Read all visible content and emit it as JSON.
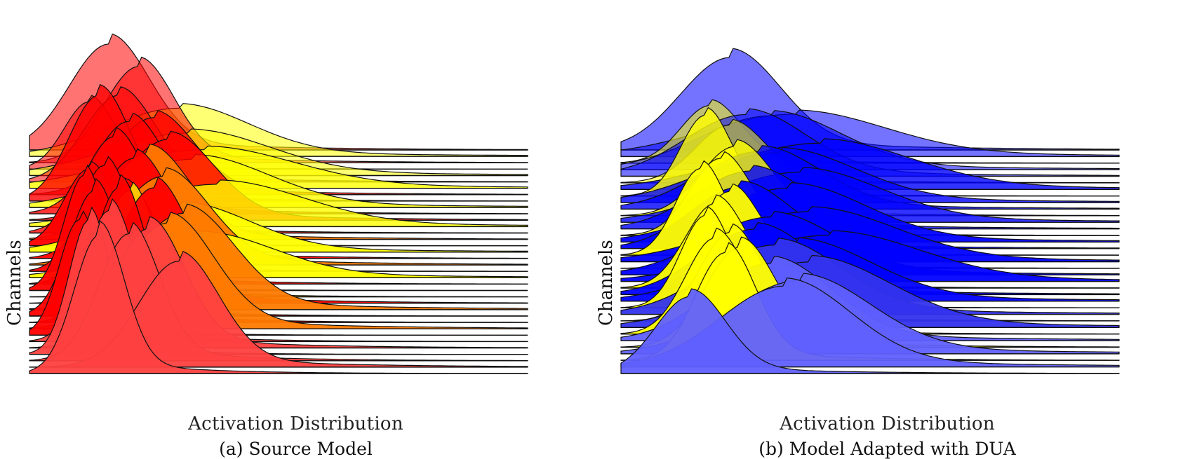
{
  "chart_data": [
    {
      "type": "ridgeline",
      "panel": "a",
      "caption": "(a) Source Model",
      "xlabel": "Activation Distribution",
      "ylabel": "Channels",
      "colors": [
        "#ff0000",
        "#ffff00",
        "#ff7a00",
        "#ff4040",
        "#ffd000"
      ],
      "series": [
        {
          "color": "#ff0000",
          "mean": 0.16,
          "std": 0.08,
          "height": 0.55
        },
        {
          "color": "#ffff00",
          "mean": 0.3,
          "std": 0.14,
          "height": 0.25
        },
        {
          "color": "#ff0000",
          "mean": 0.22,
          "std": 0.07,
          "height": 0.5
        },
        {
          "color": "#ff0000",
          "mean": 0.12,
          "std": 0.05,
          "height": 0.35
        },
        {
          "color": "#ffff00",
          "mean": 0.32,
          "std": 0.16,
          "height": 0.22
        },
        {
          "color": "#ff0000",
          "mean": 0.18,
          "std": 0.07,
          "height": 0.45
        },
        {
          "color": "#ffff00",
          "mean": 0.35,
          "std": 0.18,
          "height": 0.2
        },
        {
          "color": "#ff0000",
          "mean": 0.25,
          "std": 0.08,
          "height": 0.4
        },
        {
          "color": "#ff0000",
          "mean": 0.14,
          "std": 0.06,
          "height": 0.55
        },
        {
          "color": "#ffff00",
          "mean": 0.33,
          "std": 0.15,
          "height": 0.25
        },
        {
          "color": "#ff0000",
          "mean": 0.2,
          "std": 0.07,
          "height": 0.48
        },
        {
          "color": "#ff0000",
          "mean": 0.28,
          "std": 0.09,
          "height": 0.42
        },
        {
          "color": "#ffff00",
          "mean": 0.38,
          "std": 0.17,
          "height": 0.22
        },
        {
          "color": "#ff0000",
          "mean": 0.17,
          "std": 0.06,
          "height": 0.5
        },
        {
          "color": "#ff7a00",
          "mean": 0.24,
          "std": 0.08,
          "height": 0.45
        },
        {
          "color": "#ff0000",
          "mean": 0.12,
          "std": 0.05,
          "height": 0.4
        },
        {
          "color": "#ffff00",
          "mean": 0.3,
          "std": 0.14,
          "height": 0.24
        },
        {
          "color": "#ff0000",
          "mean": 0.21,
          "std": 0.07,
          "height": 0.52
        },
        {
          "color": "#ff7a00",
          "mean": 0.27,
          "std": 0.09,
          "height": 0.46
        },
        {
          "color": "#ff0000",
          "mean": 0.15,
          "std": 0.05,
          "height": 0.55
        },
        {
          "color": "#ffff00",
          "mean": 0.34,
          "std": 0.15,
          "height": 0.22
        },
        {
          "color": "#ff0000",
          "mean": 0.19,
          "std": 0.06,
          "height": 0.5
        },
        {
          "color": "#ff0000",
          "mean": 0.11,
          "std": 0.04,
          "height": 0.6
        },
        {
          "color": "#ffd000",
          "mean": 0.2,
          "std": 0.05,
          "height": 0.55
        },
        {
          "color": "#ff0000",
          "mean": 0.25,
          "std": 0.07,
          "height": 0.6
        },
        {
          "color": "#ff7a00",
          "mean": 0.31,
          "std": 0.1,
          "height": 0.5
        },
        {
          "color": "#ff0000",
          "mean": 0.13,
          "std": 0.05,
          "height": 0.65
        },
        {
          "color": "#ff0000",
          "mean": 0.18,
          "std": 0.05,
          "height": 0.7
        },
        {
          "color": "#ff7a00",
          "mean": 0.28,
          "std": 0.09,
          "height": 0.55
        },
        {
          "color": "#ff0000",
          "mean": 0.1,
          "std": 0.04,
          "height": 0.6
        },
        {
          "color": "#ff4040",
          "mean": 0.16,
          "std": 0.05,
          "height": 0.68
        },
        {
          "color": "#ff4040",
          "mean": 0.24,
          "std": 0.07,
          "height": 0.62
        },
        {
          "color": "#ff4040",
          "mean": 0.12,
          "std": 0.04,
          "height": 0.7
        },
        {
          "color": "#ff4040",
          "mean": 0.2,
          "std": 0.06,
          "height": 0.66
        },
        {
          "color": "#ff4040",
          "mean": 0.3,
          "std": 0.08,
          "height": 0.55
        },
        {
          "color": "#ff4040",
          "mean": 0.14,
          "std": 0.05,
          "height": 0.72
        }
      ]
    },
    {
      "type": "ridgeline",
      "panel": "b",
      "caption": "(b) Model Adapted with DUA",
      "xlabel": "Activation Distribution",
      "ylabel": "Channels",
      "colors": [
        "#0000ff",
        "#ffff00",
        "#3333ee",
        "#6060ff"
      ],
      "series": [
        {
          "color": "#0000ff",
          "mean": 0.22,
          "std": 0.1,
          "height": 0.48
        },
        {
          "color": "#0000ff",
          "mean": 0.35,
          "std": 0.18,
          "height": 0.22
        },
        {
          "color": "#ffff00",
          "mean": 0.18,
          "std": 0.06,
          "height": 0.3
        },
        {
          "color": "#0000ff",
          "mean": 0.3,
          "std": 0.14,
          "height": 0.28
        },
        {
          "color": "#0000ff",
          "mean": 0.25,
          "std": 0.12,
          "height": 0.32
        },
        {
          "color": "#ffff00",
          "mean": 0.22,
          "std": 0.07,
          "height": 0.3
        },
        {
          "color": "#0000ff",
          "mean": 0.4,
          "std": 0.18,
          "height": 0.24
        },
        {
          "color": "#ffff00",
          "mean": 0.17,
          "std": 0.05,
          "height": 0.42
        },
        {
          "color": "#0000ff",
          "mean": 0.32,
          "std": 0.15,
          "height": 0.26
        },
        {
          "color": "#0000ff",
          "mean": 0.28,
          "std": 0.12,
          "height": 0.3
        },
        {
          "color": "#ffff00",
          "mean": 0.23,
          "std": 0.07,
          "height": 0.36
        },
        {
          "color": "#0000ff",
          "mean": 0.36,
          "std": 0.16,
          "height": 0.26
        },
        {
          "color": "#0000ff",
          "mean": 0.26,
          "std": 0.11,
          "height": 0.3
        },
        {
          "color": "#ffff00",
          "mean": 0.2,
          "std": 0.06,
          "height": 0.4
        },
        {
          "color": "#0000ff",
          "mean": 0.34,
          "std": 0.15,
          "height": 0.28
        },
        {
          "color": "#0000ff",
          "mean": 0.24,
          "std": 0.1,
          "height": 0.32
        },
        {
          "color": "#ffff00",
          "mean": 0.16,
          "std": 0.05,
          "height": 0.45
        },
        {
          "color": "#0000ff",
          "mean": 0.38,
          "std": 0.17,
          "height": 0.26
        },
        {
          "color": "#ffff00",
          "mean": 0.22,
          "std": 0.06,
          "height": 0.4
        },
        {
          "color": "#0000ff",
          "mean": 0.3,
          "std": 0.13,
          "height": 0.3
        },
        {
          "color": "#0000ff",
          "mean": 0.42,
          "std": 0.18,
          "height": 0.24
        },
        {
          "color": "#ffff00",
          "mean": 0.19,
          "std": 0.06,
          "height": 0.44
        },
        {
          "color": "#0000ff",
          "mean": 0.27,
          "std": 0.11,
          "height": 0.34
        },
        {
          "color": "#0000ff",
          "mean": 0.35,
          "std": 0.15,
          "height": 0.3
        },
        {
          "color": "#ffff00",
          "mean": 0.17,
          "std": 0.05,
          "height": 0.48
        },
        {
          "color": "#3333ee",
          "mean": 0.31,
          "std": 0.13,
          "height": 0.36
        },
        {
          "color": "#ffff00",
          "mean": 0.22,
          "std": 0.06,
          "height": 0.46
        },
        {
          "color": "#3333ee",
          "mean": 0.38,
          "std": 0.16,
          "height": 0.34
        },
        {
          "color": "#ffff00",
          "mean": 0.19,
          "std": 0.06,
          "height": 0.5
        },
        {
          "color": "#6060ff",
          "mean": 0.3,
          "std": 0.12,
          "height": 0.4
        },
        {
          "color": "#ffff00",
          "mean": 0.24,
          "std": 0.07,
          "height": 0.52
        },
        {
          "color": "#6060ff",
          "mean": 0.36,
          "std": 0.14,
          "height": 0.38
        },
        {
          "color": "#ffff00",
          "mean": 0.21,
          "std": 0.06,
          "height": 0.56
        },
        {
          "color": "#6060ff",
          "mean": 0.33,
          "std": 0.13,
          "height": 0.42
        },
        {
          "color": "#6060ff",
          "mean": 0.14,
          "std": 0.07,
          "height": 0.4
        }
      ]
    }
  ]
}
